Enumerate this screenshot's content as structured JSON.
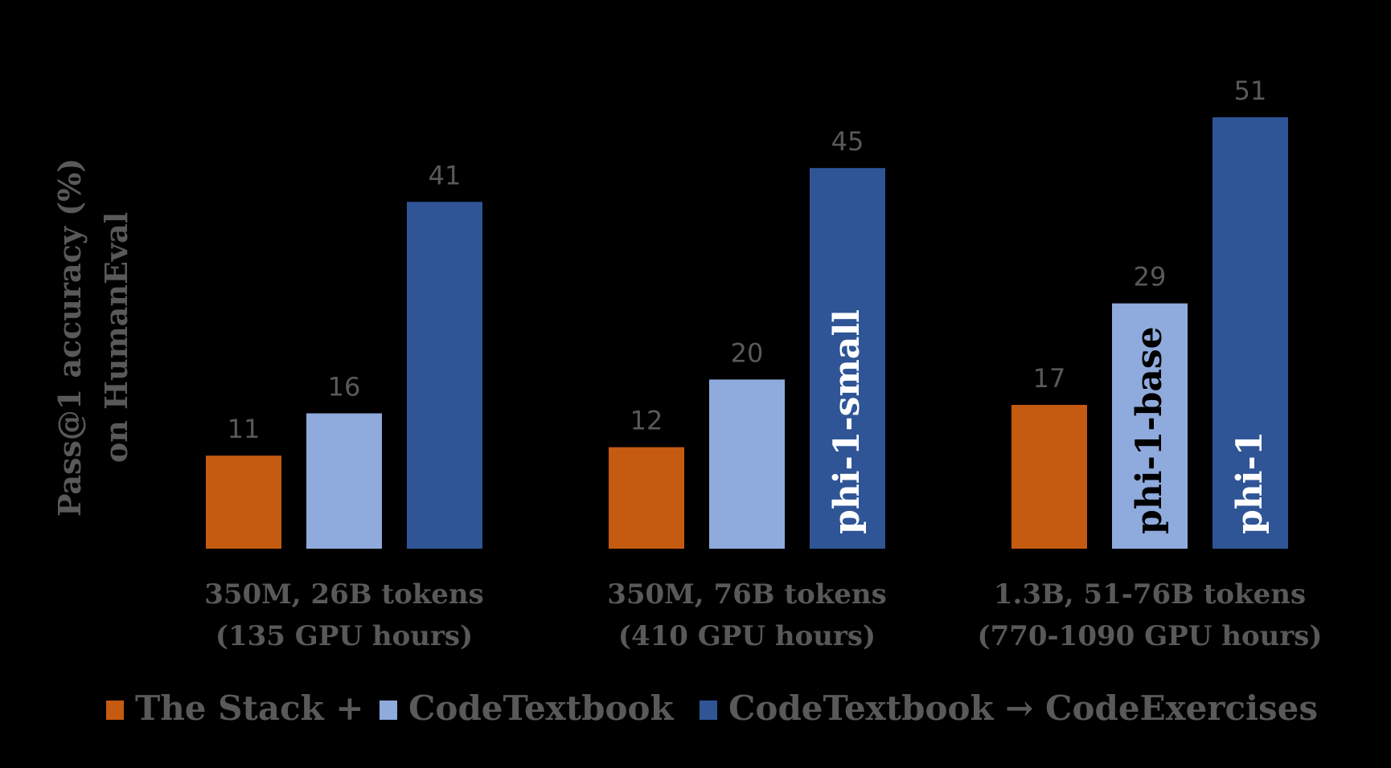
{
  "chart_data": {
    "type": "bar",
    "ylabel_lines": [
      "Pass@1 accuracy (%)",
      "on HumanEval"
    ],
    "categories": [
      {
        "line1": "350M, 26B tokens",
        "line2": "(135 GPU hours)"
      },
      {
        "line1": "350M, 76B tokens",
        "line2": "(410 GPU hours)"
      },
      {
        "line1": "1.3B, 51-76B tokens",
        "line2": "(770-1090 GPU hours)"
      }
    ],
    "series": [
      {
        "name": "The Stack +",
        "color": "#C55A11",
        "values": [
          11,
          12,
          17
        ],
        "annotations": [
          "",
          "",
          ""
        ]
      },
      {
        "name": "CodeTextbook",
        "color": "#8FAADC",
        "values": [
          16,
          20,
          29
        ],
        "annotations": [
          "",
          "",
          "phi-1-base"
        ]
      },
      {
        "name": "CodeTextbook → CodeExercises",
        "color": "#2F5597",
        "values": [
          41,
          45,
          51
        ],
        "annotations": [
          "",
          "phi-1-small",
          "phi-1"
        ]
      }
    ],
    "annotation_colors": {
      "CodeTextbook": "#000000",
      "CodeTextbook → CodeExercises": "#FFFFFF"
    },
    "ylim": [
      0,
      51
    ],
    "grid": false,
    "legend_position": "bottom"
  }
}
